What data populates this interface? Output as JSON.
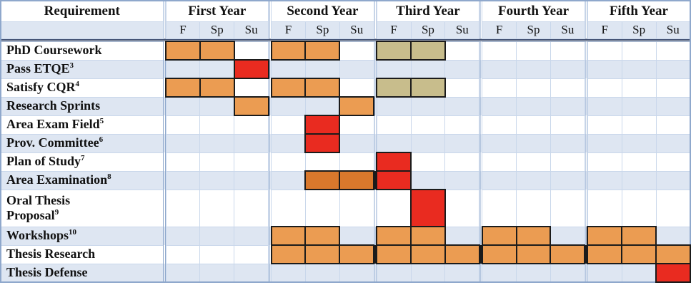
{
  "colors": {
    "orange": "#EB9C52",
    "dark_orange": "#D9782C",
    "red": "#E92B20",
    "tan": "#C8BD8C",
    "row_alt": "#DEE6F2",
    "grid_line": "#C9D7EB",
    "group_border": "#8FA8CC",
    "cell_outline": "#1B1B1B",
    "header_rule_dark": "#3D4D6F"
  },
  "table": {
    "requirement_header": "Requirement",
    "years": [
      "First Year",
      "Second Year",
      "Third Year",
      "Fourth Year",
      "Fifth Year"
    ],
    "terms": [
      "F",
      "Sp",
      "Su"
    ],
    "cell_color_legend": {
      "O": "orange-planned-term",
      "D": "dark-orange-exam-prep",
      "R": "red-milestone-deadline",
      "T": "tan-optional-coursework"
    },
    "rows": [
      {
        "label": "PhD Coursework",
        "sup": "",
        "cells": [
          "O",
          "O",
          "",
          "O",
          "O",
          "",
          "T",
          "T",
          "",
          "",
          "",
          "",
          "",
          "",
          ""
        ]
      },
      {
        "label": "Pass ETQE",
        "sup": "3",
        "cells": [
          "",
          "",
          "R",
          "",
          "",
          "",
          "",
          "",
          "",
          "",
          "",
          "",
          "",
          "",
          ""
        ]
      },
      {
        "label": "Satisfy CQR",
        "sup": "4",
        "cells": [
          "O",
          "O",
          "",
          "O",
          "O",
          "",
          "T",
          "T",
          "",
          "",
          "",
          "",
          "",
          "",
          ""
        ]
      },
      {
        "label": "Research Sprints",
        "sup": "",
        "cells": [
          "",
          "",
          "O",
          "",
          "",
          "O",
          "",
          "",
          "",
          "",
          "",
          "",
          "",
          "",
          ""
        ]
      },
      {
        "label": "Area Exam Field",
        "sup": "5",
        "cells": [
          "",
          "",
          "",
          "",
          "R",
          "",
          "",
          "",
          "",
          "",
          "",
          "",
          "",
          "",
          ""
        ]
      },
      {
        "label": "Prov. Committee",
        "sup": "6",
        "cells": [
          "",
          "",
          "",
          "",
          "R",
          "",
          "",
          "",
          "",
          "",
          "",
          "",
          "",
          "",
          ""
        ]
      },
      {
        "label": "Plan of Study",
        "sup": "7",
        "cells": [
          "",
          "",
          "",
          "",
          "",
          "",
          "R",
          "",
          "",
          "",
          "",
          "",
          "",
          "",
          ""
        ]
      },
      {
        "label": "Area Examination",
        "sup": "8",
        "cells": [
          "",
          "",
          "",
          "",
          "D",
          "D",
          "R",
          "",
          "",
          "",
          "",
          "",
          "",
          "",
          ""
        ]
      },
      {
        "label": "Oral Thesis",
        "label2": "Proposal",
        "sup": "9",
        "tall": true,
        "cells": [
          "",
          "",
          "",
          "",
          "",
          "",
          "",
          "R",
          "",
          "",
          "",
          "",
          "",
          "",
          ""
        ]
      },
      {
        "label": "Workshops",
        "sup": "10",
        "cells": [
          "",
          "",
          "",
          "O",
          "O",
          "",
          "O",
          "O",
          "",
          "O",
          "O",
          "",
          "O",
          "O",
          ""
        ]
      },
      {
        "label": "Thesis Research",
        "sup": "",
        "cells": [
          "",
          "",
          "",
          "O",
          "O",
          "O",
          "O",
          "O",
          "O",
          "O",
          "O",
          "O",
          "O",
          "O",
          "O"
        ]
      },
      {
        "label": "Thesis Defense",
        "sup": "",
        "cells": [
          "",
          "",
          "",
          "",
          "",
          "",
          "",
          "",
          "",
          "",
          "",
          "",
          "",
          "",
          "R"
        ]
      }
    ]
  }
}
